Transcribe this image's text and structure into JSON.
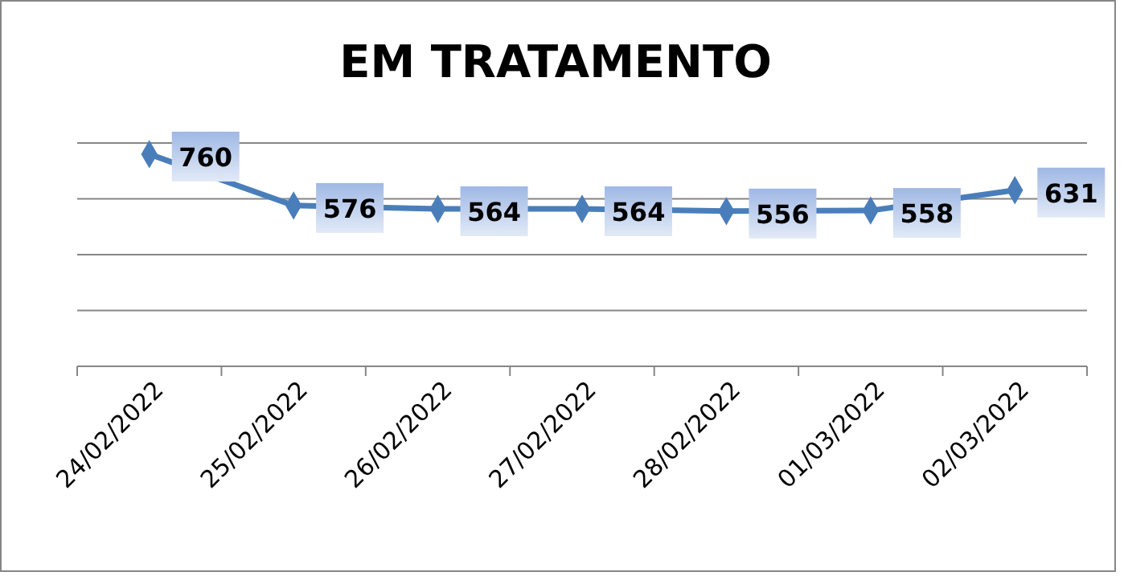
{
  "chart_data": {
    "type": "line",
    "title": "EM TRATAMENTO",
    "categories": [
      "24/02/2022",
      "25/02/2022",
      "26/02/2022",
      "27/02/2022",
      "28/02/2022",
      "01/03/2022",
      "02/03/2022"
    ],
    "series": [
      {
        "color": "#4a7ebb",
        "values": [
          760,
          576,
          564,
          564,
          556,
          558,
          631
        ]
      }
    ],
    "ylim": [
      0,
      800
    ],
    "yticks": [
      {
        "value": 0,
        "label": null
      },
      {
        "value": 200,
        "label": null
      },
      {
        "value": 400,
        "label": null
      },
      {
        "value": 600,
        "label": null
      },
      {
        "value": 800,
        "label": null
      }
    ],
    "grid": "y",
    "tick_labels": "x",
    "marker": "diamond",
    "data_labels": true
  }
}
